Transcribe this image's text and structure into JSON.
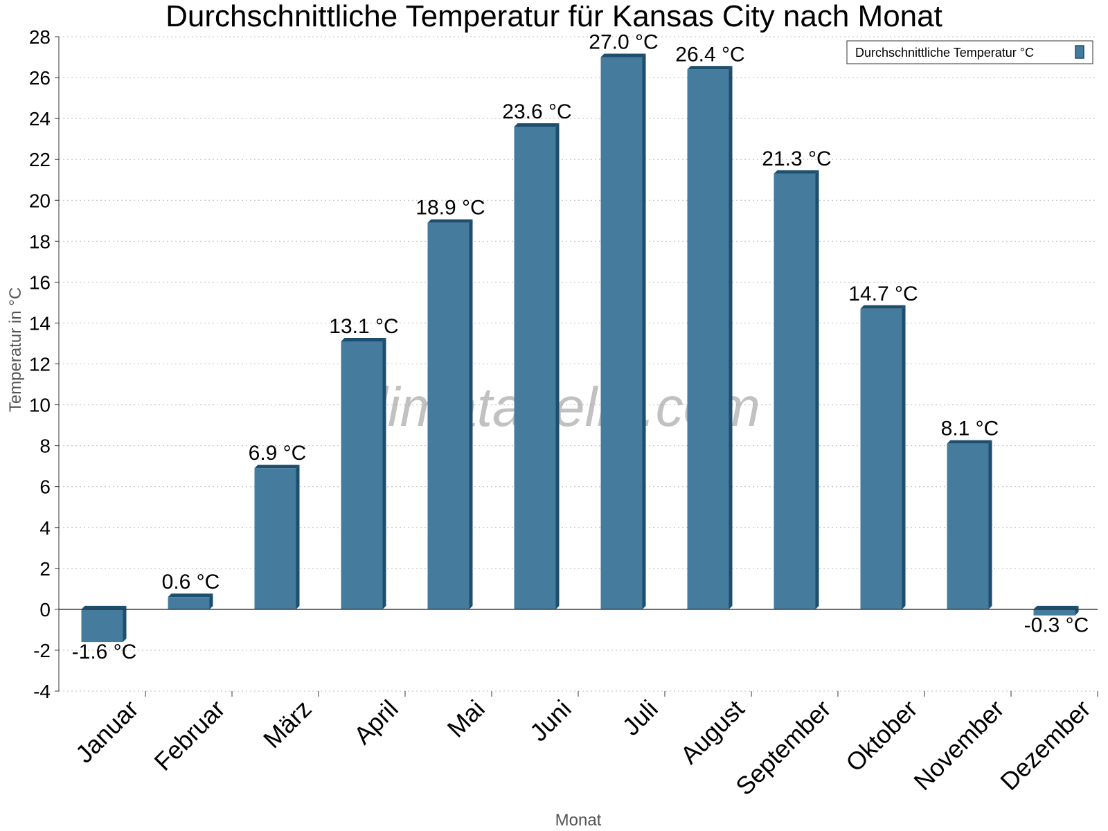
{
  "chart_data": {
    "type": "bar",
    "title": "Durchschnittliche Temperatur für Kansas City nach Monat",
    "xlabel": "Monat",
    "ylabel": "Temperatur in °C",
    "categories": [
      "Januar",
      "Februar",
      "März",
      "April",
      "Mai",
      "Juni",
      "Juli",
      "August",
      "September",
      "Oktober",
      "November",
      "Dezember"
    ],
    "series": [
      {
        "name": "Durchschnittliche Temperatur °C",
        "values": [
          -1.6,
          0.6,
          6.9,
          13.1,
          18.9,
          23.6,
          27.0,
          26.4,
          21.3,
          14.7,
          8.1,
          -0.3
        ],
        "labels": [
          "-1.6 °C",
          "0.6 °C",
          "6.9 °C",
          "13.1 °C",
          "18.9 °C",
          "23.6 °C",
          "27.0 °C",
          "26.4 °C",
          "21.3 °C",
          "14.7 °C",
          "8.1 °C",
          "-0.3 °C"
        ]
      }
    ],
    "ylim": [
      -4,
      28
    ],
    "yticks": [
      "-4",
      "-2",
      "0",
      "2",
      "4",
      "6",
      "8",
      "10",
      "12",
      "14",
      "16",
      "18",
      "20",
      "22",
      "24",
      "26",
      "28"
    ],
    "grid": true,
    "legend_position": "top-right",
    "watermark": "klimatabelle.com",
    "colors": {
      "bar": "#457b9d",
      "bar_dark": "#1d4e6e",
      "grid": "#bbbbbb"
    }
  }
}
